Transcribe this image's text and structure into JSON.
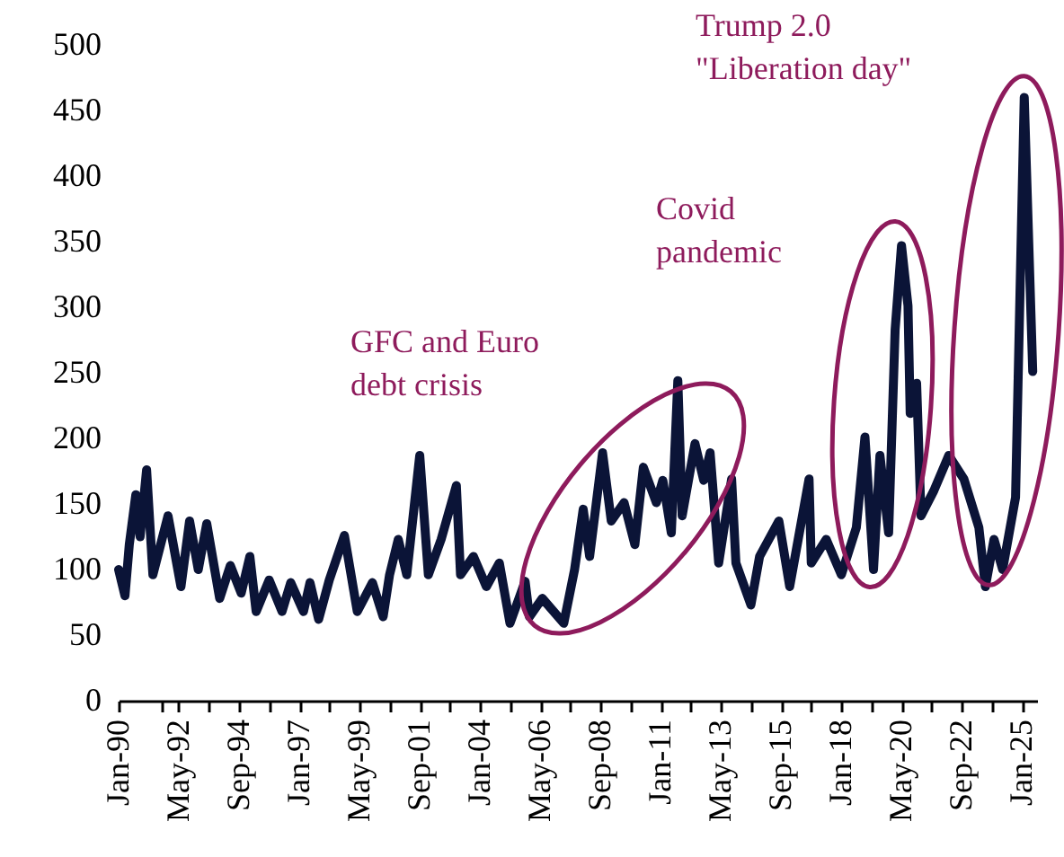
{
  "chart_data": {
    "type": "line",
    "x": [
      "1990-01",
      "1990-04",
      "1990-06",
      "1990-09",
      "1990-11",
      "1991-02",
      "1991-05",
      "1991-12",
      "1992-06",
      "1992-10",
      "1993-02",
      "1993-06",
      "1993-12",
      "1994-05",
      "1994-10",
      "1995-02",
      "1995-05",
      "1995-11",
      "1996-05",
      "1996-09",
      "1997-03",
      "1997-06",
      "1997-10",
      "1998-03",
      "1998-10",
      "1999-04",
      "1999-11",
      "2000-04",
      "2000-07",
      "2000-11",
      "2001-03",
      "2001-09",
      "2002-01",
      "2002-07",
      "2003-02",
      "2003-04",
      "2003-10",
      "2004-04",
      "2004-10",
      "2005-03",
      "2005-10",
      "2005-12",
      "2006-06",
      "2007-04",
      "2007-09",
      "2008-01",
      "2008-04",
      "2008-10",
      "2009-02",
      "2009-08",
      "2010-01",
      "2010-05",
      "2010-11",
      "2011-02",
      "2011-06",
      "2011-09",
      "2011-11",
      "2012-05",
      "2012-09",
      "2012-12",
      "2013-04",
      "2013-10",
      "2013-12",
      "2014-07",
      "2014-11",
      "2015-08",
      "2016-01",
      "2016-10",
      "2016-11",
      "2017-06",
      "2018-01",
      "2018-08",
      "2018-12",
      "2019-04",
      "2019-07",
      "2019-11",
      "2020-02",
      "2020-05",
      "2020-08",
      "2020-09",
      "2020-12",
      "2021-02",
      "2021-08",
      "2022-03",
      "2022-10",
      "2023-05",
      "2023-08",
      "2023-12",
      "2024-04",
      "2024-10",
      "2025-02",
      "2025-06"
    ],
    "series": [
      {
        "color": "#0b1437",
        "values": [
          100,
          80,
          119,
          157,
          125,
          176,
          96,
          141,
          87,
          137,
          100,
          135,
          78,
          103,
          82,
          110,
          68,
          92,
          68,
          90,
          68,
          90,
          62,
          92,
          126,
          68,
          90,
          64,
          96,
          123,
          96,
          187,
          96,
          123,
          164,
          96,
          110,
          87,
          105,
          59,
          91,
          64,
          78,
          59,
          100,
          146,
          110,
          189,
          137,
          151,
          119,
          178,
          151,
          168,
          128,
          244,
          141,
          196,
          168,
          189,
          105,
          169,
          105,
          73,
          110,
          137,
          87,
          169,
          105,
          123,
          96,
          132,
          201,
          100,
          187,
          128,
          283,
          347,
          301,
          219,
          242,
          141,
          160,
          187,
          169,
          132,
          87,
          123,
          100,
          155,
          460,
          251
        ]
      }
    ],
    "xlim": [
      "1990-01",
      "2025-08"
    ],
    "xticks": [
      {
        "value": "1990-01",
        "label": "Jan-90"
      },
      {
        "value": "1991-09",
        "label": null
      },
      {
        "value": "1992-05",
        "label": "May-92"
      },
      {
        "value": "1993-07",
        "label": null
      },
      {
        "value": "1994-09",
        "label": "Sep-94"
      },
      {
        "value": "1995-11",
        "label": null
      },
      {
        "value": "1997-01",
        "label": "Jan-97"
      },
      {
        "value": "1998-03",
        "label": null
      },
      {
        "value": "1999-05",
        "label": "May-99"
      },
      {
        "value": "2000-07",
        "label": null
      },
      {
        "value": "2001-09",
        "label": "Sep-01"
      },
      {
        "value": "2002-11",
        "label": null
      },
      {
        "value": "2004-01",
        "label": "Jan-04"
      },
      {
        "value": "2005-03",
        "label": null
      },
      {
        "value": "2006-05",
        "label": "May-06"
      },
      {
        "value": "2007-07",
        "label": null
      },
      {
        "value": "2008-09",
        "label": "Sep-08"
      },
      {
        "value": "2009-11",
        "label": null
      },
      {
        "value": "2011-01",
        "label": "Jan-11"
      },
      {
        "value": "2012-03",
        "label": null
      },
      {
        "value": "2013-05",
        "label": "May-13"
      },
      {
        "value": "2014-07",
        "label": null
      },
      {
        "value": "2015-09",
        "label": "Sep-15"
      },
      {
        "value": "2016-11",
        "label": null
      },
      {
        "value": "2018-01",
        "label": "Jan-18"
      },
      {
        "value": "2019-03",
        "label": null
      },
      {
        "value": "2020-05",
        "label": "May-20"
      },
      {
        "value": "2021-07",
        "label": null
      },
      {
        "value": "2022-09",
        "label": "Sep-22"
      },
      {
        "value": "2023-11",
        "label": null
      },
      {
        "value": "2025-01",
        "label": "Jan-25"
      }
    ],
    "ylim": [
      0,
      500
    ],
    "yticks": [
      0,
      50,
      100,
      150,
      200,
      250,
      300,
      350,
      400,
      450,
      500
    ],
    "annotations": [
      "GFC and Euro\ndebt crisis",
      "Covid\npandemic",
      "Trump 2.0\n\"Liberation day\""
    ]
  }
}
